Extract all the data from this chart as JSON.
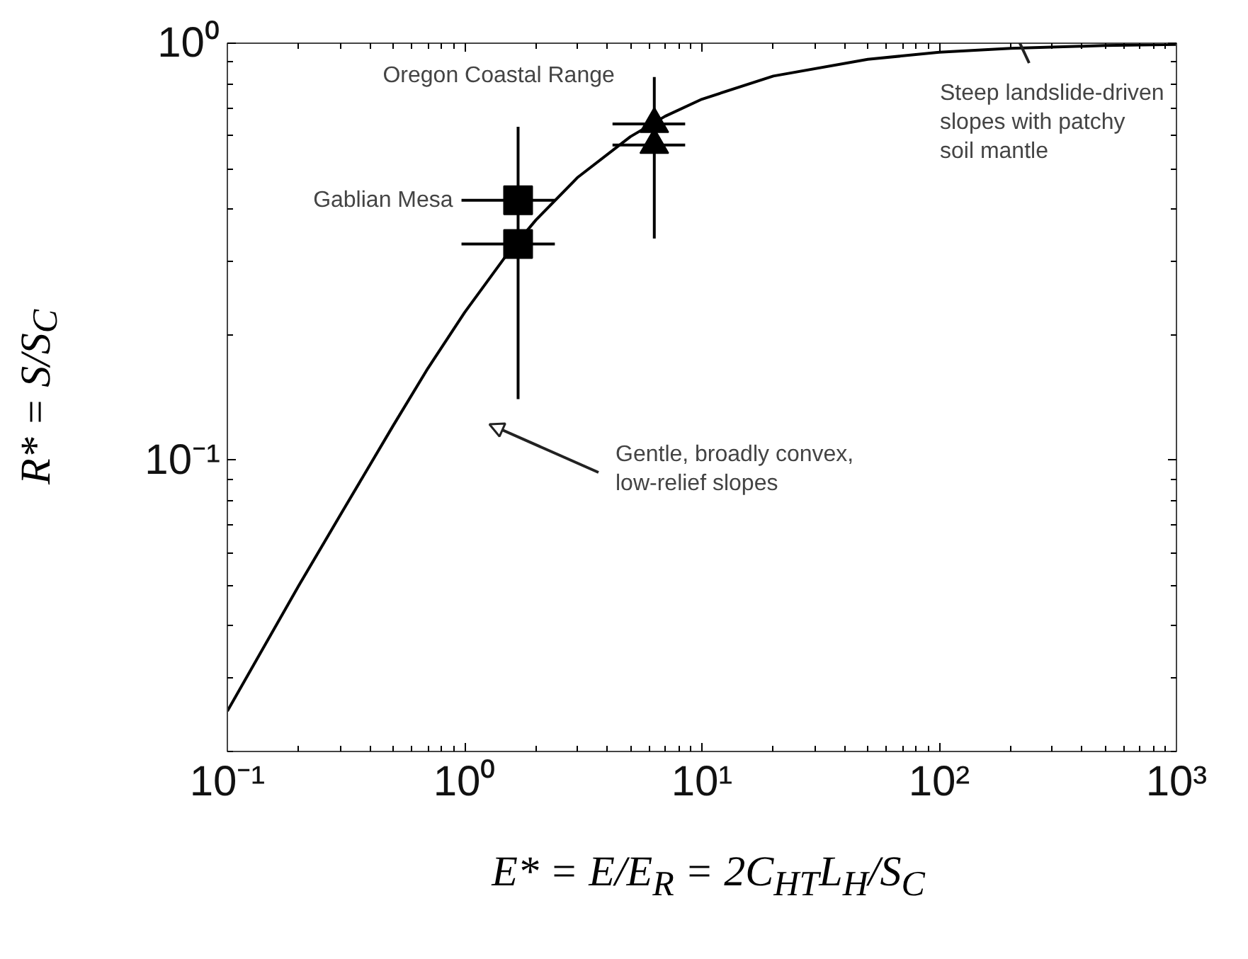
{
  "chart_data": {
    "type": "line",
    "xlabel": "E* = E/E$_{R}$ = 2C$_{HT}$L$_{H}$/S$_{C}$",
    "ylabel": "R* = S/S$_{C}$",
    "log": "xy",
    "grid": false,
    "xlim": [
      0.1,
      1000
    ],
    "ylim": [
      0.02,
      1
    ],
    "xticks": [
      {
        "value": 0.1,
        "label": "10⁻¹"
      },
      {
        "value": 1,
        "label": "10⁰"
      },
      {
        "value": 10,
        "label": "10¹"
      },
      {
        "value": 100,
        "label": "10²"
      },
      {
        "value": 1000,
        "label": "10³"
      }
    ],
    "yticks": [
      {
        "value": 0.1,
        "label": "10⁻¹"
      },
      {
        "value": 1,
        "label": "10⁰"
      }
    ],
    "series": [
      {
        "color": "#000000",
        "marker": "none",
        "x": [
          0.1,
          0.2,
          0.3,
          0.5,
          0.7,
          1,
          1.5,
          2,
          3,
          5,
          7,
          10,
          20,
          50,
          100,
          200,
          500,
          1000
        ],
        "values": [
          0.025,
          0.05,
          0.074,
          0.121,
          0.166,
          0.226,
          0.31,
          0.377,
          0.477,
          0.597,
          0.668,
          0.734,
          0.834,
          0.915,
          0.951,
          0.972,
          0.987,
          0.993
        ]
      },
      {
        "type": "scatter",
        "name": "Gablian Mesa",
        "color": "#000000",
        "marker": "square",
        "x": [
          1.68,
          1.68
        ],
        "values": [
          0.42,
          0.33
        ],
        "errors": [
          null,
          [
            0.14,
            0.63
          ]
        ],
        "xerrors": [
          [
            0.97,
            2.4
          ],
          [
            0.97,
            2.4
          ]
        ]
      },
      {
        "type": "scatter",
        "name": "Oregon Coastal Range",
        "color": "#000000",
        "marker": "triangle",
        "x": [
          6.3,
          6.3
        ],
        "values": [
          0.64,
          0.57
        ],
        "errors": [
          [
            0.34,
            0.83
          ],
          null
        ],
        "xerrors": [
          [
            4.2,
            8.5
          ],
          [
            4.2,
            8.5
          ]
        ]
      }
    ],
    "annotations": [
      "Steep landslide-driven\nslopes with patchy\nsoil mantle",
      "Gentle, broadly convex,\nlow-relief slopes"
    ]
  }
}
